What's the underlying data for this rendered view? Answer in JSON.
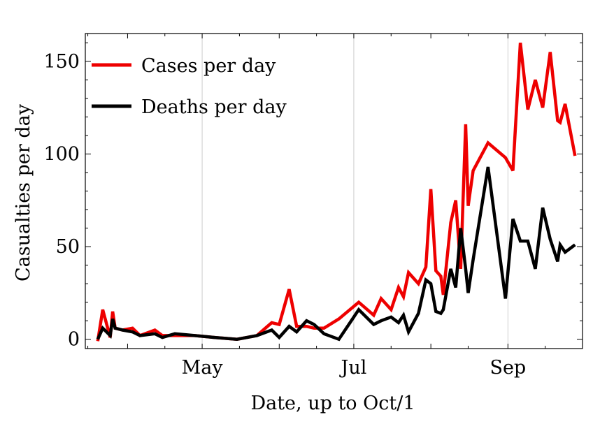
{
  "chart_data": {
    "type": "line",
    "title": "",
    "xlabel": "Date, up to Oct/1",
    "ylabel": "Casualties per day",
    "xlim": [
      "2020-03-15",
      "2020-10-01"
    ],
    "ylim": [
      -5,
      165
    ],
    "x_ticks": [
      {
        "date": "2020-05-01",
        "label": "May"
      },
      {
        "date": "2020-07-01",
        "label": "Jul"
      },
      {
        "date": "2020-09-01",
        "label": "Sep"
      }
    ],
    "y_ticks": [
      0,
      50,
      100,
      150
    ],
    "grid": "vertical",
    "legend": "top-left",
    "series": [
      {
        "name": "Cases per day",
        "color": "#ee0000",
        "x": [
          "2020-03-20",
          "2020-03-22",
          "2020-03-25",
          "2020-03-26",
          "2020-03-27",
          "2020-03-30",
          "2020-04-03",
          "2020-04-06",
          "2020-04-12",
          "2020-04-15",
          "2020-04-20",
          "2020-04-28",
          "2020-05-06",
          "2020-05-15",
          "2020-05-23",
          "2020-05-29",
          "2020-06-01",
          "2020-06-05",
          "2020-06-08",
          "2020-06-12",
          "2020-06-15",
          "2020-06-19",
          "2020-06-25",
          "2020-07-03",
          "2020-07-09",
          "2020-07-12",
          "2020-07-16",
          "2020-07-19",
          "2020-07-21",
          "2020-07-23",
          "2020-07-27",
          "2020-07-30",
          "2020-08-01",
          "2020-08-03",
          "2020-08-05",
          "2020-08-06",
          "2020-08-09",
          "2020-08-11",
          "2020-08-13",
          "2020-08-15",
          "2020-08-16",
          "2020-08-18",
          "2020-08-24",
          "2020-08-31",
          "2020-09-03",
          "2020-09-06",
          "2020-09-09",
          "2020-09-12",
          "2020-09-15",
          "2020-09-18",
          "2020-09-21",
          "2020-09-22",
          "2020-09-24",
          "2020-09-28"
        ],
        "values": [
          -1,
          16,
          1,
          15,
          6,
          5,
          6,
          2,
          5,
          2,
          2,
          2,
          1,
          0,
          2,
          9,
          8,
          27,
          7,
          7,
          6,
          6,
          11,
          20,
          13,
          22,
          16,
          28,
          23,
          36,
          30,
          39,
          81,
          37,
          34,
          24,
          63,
          75,
          38,
          116,
          72,
          91,
          106,
          98,
          91,
          160,
          124,
          140,
          125,
          155,
          118,
          117,
          127,
          99
        ]
      },
      {
        "name": "Deaths per day",
        "color": "#000000",
        "x": [
          "2020-03-20",
          "2020-03-22",
          "2020-03-25",
          "2020-03-26",
          "2020-03-27",
          "2020-03-30",
          "2020-04-03",
          "2020-04-06",
          "2020-04-12",
          "2020-04-15",
          "2020-04-20",
          "2020-04-28",
          "2020-05-06",
          "2020-05-15",
          "2020-05-23",
          "2020-05-29",
          "2020-06-01",
          "2020-06-05",
          "2020-06-08",
          "2020-06-12",
          "2020-06-15",
          "2020-06-19",
          "2020-06-25",
          "2020-07-03",
          "2020-07-09",
          "2020-07-12",
          "2020-07-16",
          "2020-07-19",
          "2020-07-21",
          "2020-07-23",
          "2020-07-27",
          "2020-07-30",
          "2020-08-01",
          "2020-08-03",
          "2020-08-05",
          "2020-08-06",
          "2020-08-09",
          "2020-08-11",
          "2020-08-13",
          "2020-08-15",
          "2020-08-16",
          "2020-08-18",
          "2020-08-24",
          "2020-08-31",
          "2020-09-03",
          "2020-09-06",
          "2020-09-09",
          "2020-09-12",
          "2020-09-15",
          "2020-09-18",
          "2020-09-21",
          "2020-09-22",
          "2020-09-24",
          "2020-09-28"
        ],
        "values": [
          0,
          6,
          2,
          11,
          6,
          5,
          4,
          2,
          3,
          1,
          3,
          2,
          1,
          0,
          2,
          5,
          1,
          7,
          4,
          10,
          8,
          3,
          0,
          16,
          8,
          10,
          12,
          9,
          13,
          4,
          14,
          32,
          30,
          15,
          14,
          16,
          38,
          28,
          60,
          38,
          25,
          43,
          93,
          22,
          65,
          53,
          53,
          38,
          71,
          54,
          42,
          51,
          47,
          51
        ]
      }
    ]
  }
}
